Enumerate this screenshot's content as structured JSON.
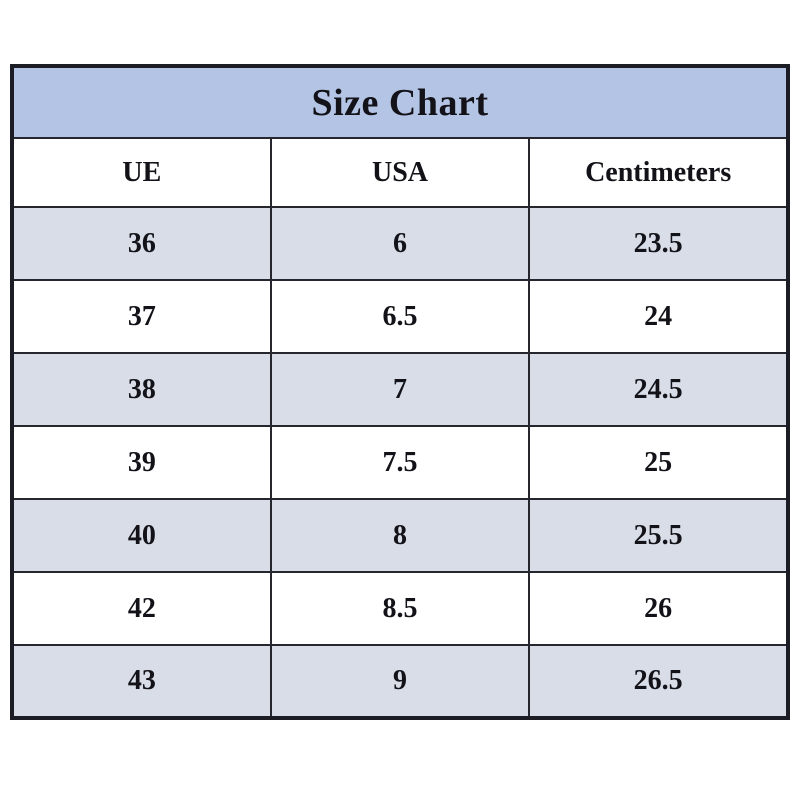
{
  "table": {
    "title": "Size Chart",
    "columns": [
      "UE",
      "USA",
      "Centimeters"
    ],
    "rows": [
      [
        "36",
        "6",
        "23.5"
      ],
      [
        "37",
        "6.5",
        "24"
      ],
      [
        "38",
        "7",
        "24.5"
      ],
      [
        "39",
        "7.5",
        "25"
      ],
      [
        "40",
        "8",
        "25.5"
      ],
      [
        "42",
        "8.5",
        "26"
      ],
      [
        "43",
        "9",
        "26.5"
      ]
    ],
    "colors": {
      "title_bg": "#b4c4e4",
      "shaded_row_bg": "#d8dde7",
      "white_row_bg": "#ffffff",
      "border": "#1c1c24",
      "text": "#121218"
    }
  },
  "chart_data": {
    "type": "table",
    "title": "Size Chart",
    "columns": [
      "UE",
      "USA",
      "Centimeters"
    ],
    "rows": [
      [
        36,
        6,
        23.5
      ],
      [
        37,
        6.5,
        24
      ],
      [
        38,
        7,
        24.5
      ],
      [
        39,
        7.5,
        25
      ],
      [
        40,
        8,
        25.5
      ],
      [
        42,
        8.5,
        26
      ],
      [
        43,
        9,
        26.5
      ]
    ],
    "layout": {
      "title_band": true,
      "zebra_striping": "shaded starts at first data row",
      "text_align": "center"
    }
  }
}
